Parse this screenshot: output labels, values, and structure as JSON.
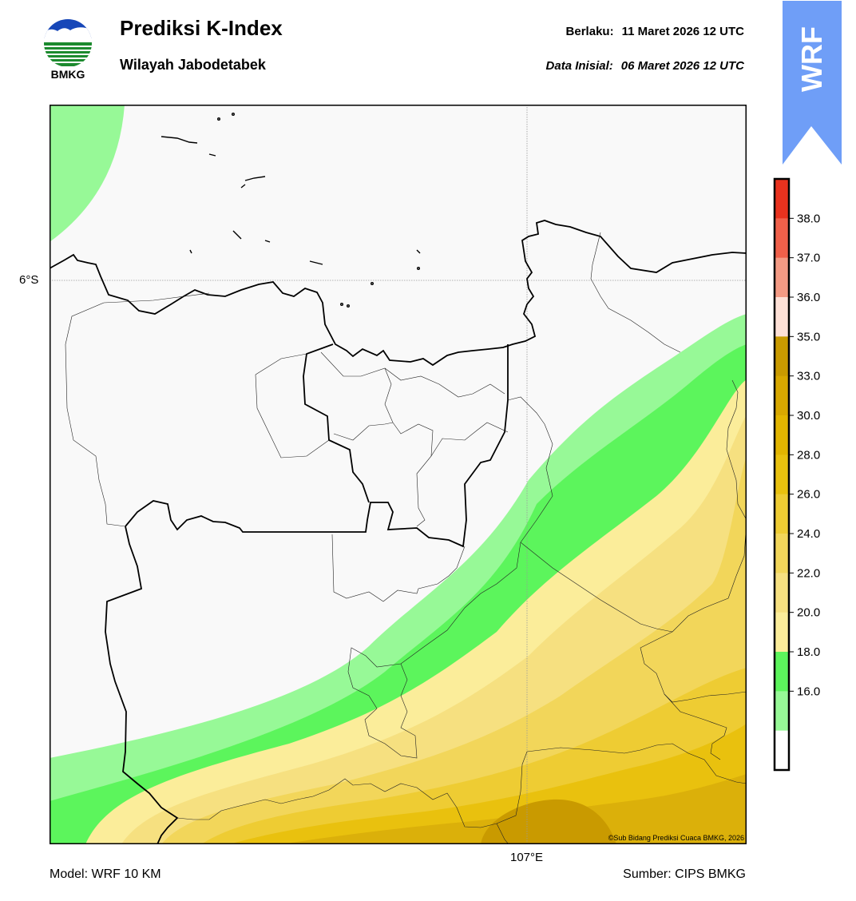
{
  "header": {
    "title": "Prediksi K-Index",
    "subtitle": "Wilayah Jabodetabek",
    "valid_label": "Berlaku:",
    "valid_value": "11 Maret 2026 12 UTC",
    "init_label": "Data Inisial:",
    "init_value": "06 Maret 2026 12 UTC"
  },
  "logo": {
    "text": "BMKG",
    "icon": "bmkg-logo-icon"
  },
  "badge": {
    "text": "WRF",
    "color": "#6f9ef7"
  },
  "map": {
    "lat_label": "6°S",
    "lon_label": "107°E",
    "copyright": "©Sub Bidang Prediksi Cuaca BMKG, 2026",
    "land_color": "#f9f9f9"
  },
  "footer": {
    "model": "Model: WRF 10 KM",
    "source": "Sumber: CIPS BMKG"
  },
  "colorbar": {
    "labels": [
      "38.0",
      "37.0",
      "36.0",
      "35.0",
      "33.0",
      "30.0",
      "28.0",
      "26.0",
      "24.0",
      "22.0",
      "20.0",
      "18.0",
      "16.0"
    ],
    "colors_top_to_bottom": [
      "#e8321e",
      "#f0604a",
      "#f39a84",
      "#fde0d6",
      "#c99a00",
      "#d8a800",
      "#e2b500",
      "#e9c10e",
      "#eecc33",
      "#f2d65a",
      "#f6e080",
      "#fbed9a",
      "#5cf55c",
      "#97f997",
      "#ffffff"
    ]
  }
}
